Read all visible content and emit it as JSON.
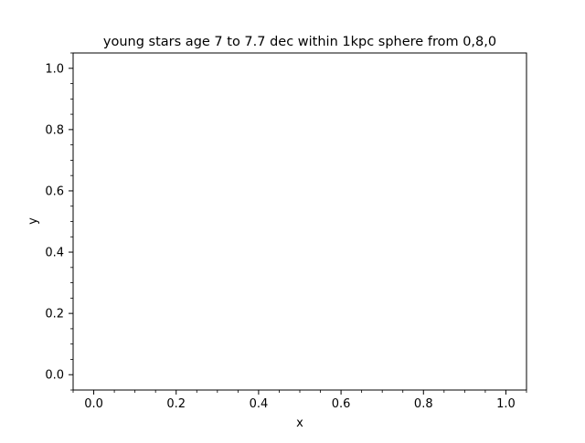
{
  "chart_data": {
    "type": "scatter",
    "title": "young stars age 7 to 7.7 dec within 1kpc sphere from 0,8,0",
    "xlabel": "x",
    "ylabel": "y",
    "xlim": [
      -0.05,
      1.05
    ],
    "ylim": [
      -0.05,
      1.05
    ],
    "x_ticks": [
      {
        "value": 0.0,
        "label": "0.0"
      },
      {
        "value": 0.2,
        "label": "0.2"
      },
      {
        "value": 0.4,
        "label": "0.4"
      },
      {
        "value": 0.6,
        "label": "0.6"
      },
      {
        "value": 0.8,
        "label": "0.8"
      },
      {
        "value": 1.0,
        "label": "1.0"
      }
    ],
    "y_ticks": [
      {
        "value": 0.0,
        "label": "0.0"
      },
      {
        "value": 0.2,
        "label": "0.2"
      },
      {
        "value": 0.4,
        "label": "0.4"
      },
      {
        "value": 0.6,
        "label": "0.6"
      },
      {
        "value": 0.8,
        "label": "0.8"
      },
      {
        "value": 1.0,
        "label": "1.0"
      }
    ],
    "minor_ticks": true,
    "grid": false,
    "series": [
      {
        "x": [],
        "y": []
      }
    ]
  }
}
